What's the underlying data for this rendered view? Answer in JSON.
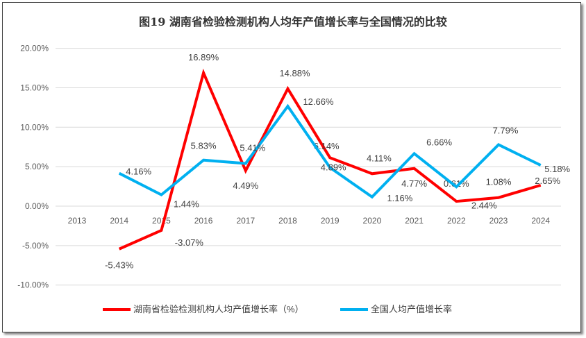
{
  "chart_data": {
    "type": "line",
    "title": "图19  湖南省检验检测机构人均年产值增长率与全国情况的比较",
    "categories": [
      "2013",
      "2014",
      "2015",
      "2016",
      "2017",
      "2018",
      "2019",
      "2020",
      "2021",
      "2022",
      "2023",
      "2024"
    ],
    "ylim": [
      -10,
      20
    ],
    "yticks": [
      "-10.00%",
      "-5.00%",
      "0.00%",
      "5.00%",
      "10.00%",
      "15.00%",
      "20.00%"
    ],
    "grid": true,
    "legend": "bottom",
    "series": [
      {
        "name": "湖南省检验检测机构人均产值增长率（%）",
        "color": "#ff0000",
        "values": [
          null,
          -5.43,
          -3.07,
          16.89,
          4.49,
          14.88,
          6.14,
          4.11,
          4.77,
          0.61,
          1.08,
          2.65
        ],
        "labels": [
          "",
          "-5.43%",
          "-3.07%",
          "16.89%",
          "4.49%",
          "14.88%",
          "6.14%",
          "4.11%",
          "4.77%",
          "0.61%",
          "1.08%",
          "2.65%"
        ]
      },
      {
        "name": "全国人均产值增长率",
        "color": "#00b0f0",
        "values": [
          null,
          4.16,
          1.44,
          5.83,
          5.41,
          12.66,
          4.89,
          1.16,
          6.66,
          2.44,
          7.79,
          5.18
        ],
        "labels": [
          "",
          "4.16%",
          "1.44%",
          "5.83%",
          "5.41%",
          "12.66%",
          "4.89%",
          "1.16%",
          "6.66%",
          "2.44%",
          "7.79%",
          "5.18%"
        ]
      }
    ]
  }
}
